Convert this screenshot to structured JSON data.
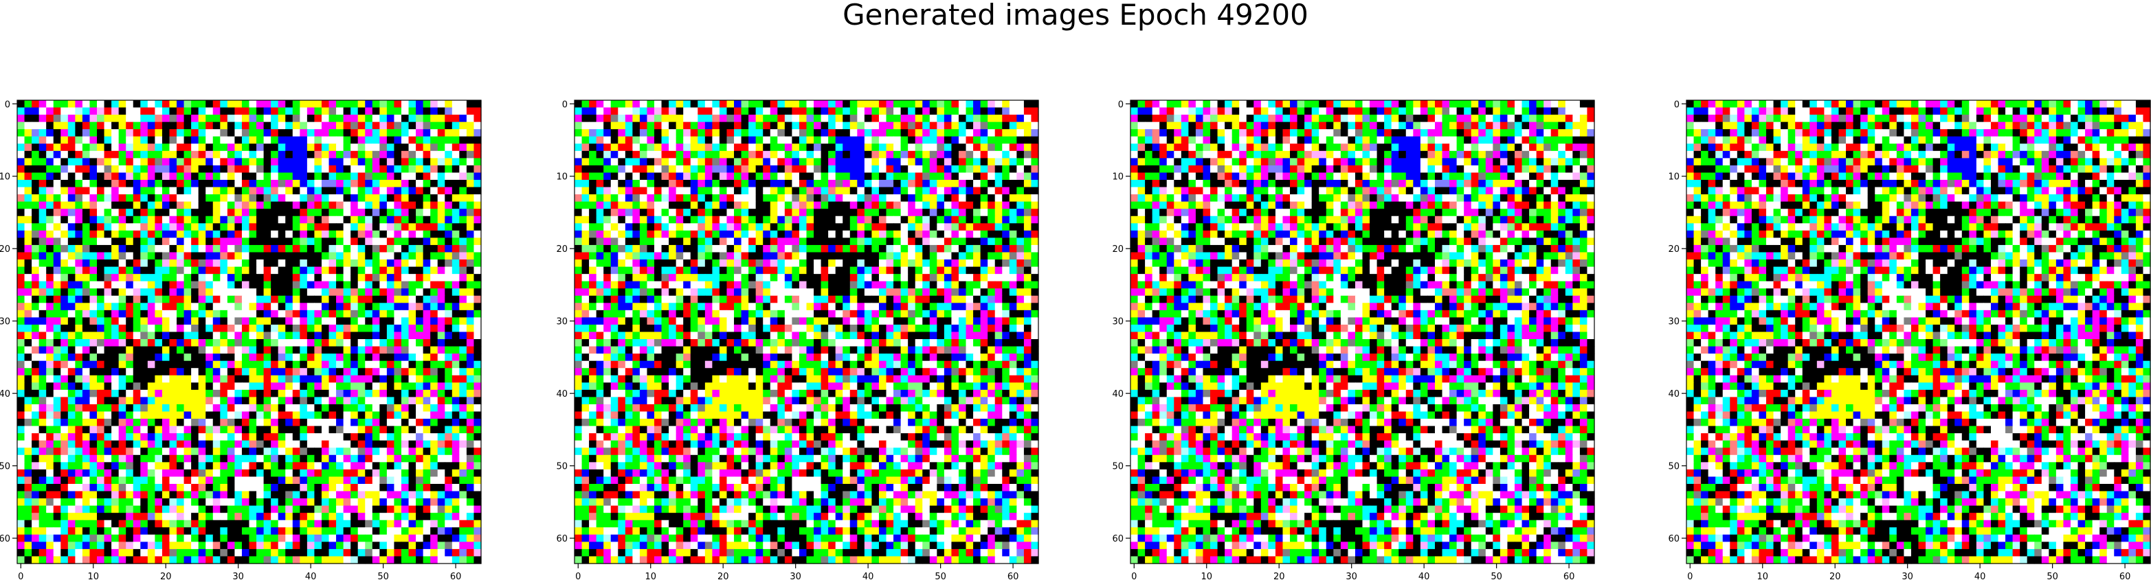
{
  "figure": {
    "title": "Generated images Epoch 49200"
  },
  "chart_data": {
    "type": "heatmap",
    "title": "Generated images Epoch 49200",
    "panel_count": 4,
    "image_resolution": [
      64,
      64
    ],
    "xlim": [
      0,
      63
    ],
    "ylim": [
      63,
      0
    ],
    "x_ticks": [
      0,
      10,
      20,
      30,
      40,
      50,
      60
    ],
    "y_ticks": [
      0,
      10,
      20,
      30,
      40,
      50,
      60
    ],
    "palette": [
      "#000000",
      "#ffffff",
      "#ff0000",
      "#00ff00",
      "#0000ff",
      "#ffff00",
      "#00ffff",
      "#ff00ff",
      "#ff8080",
      "#80ff80",
      "#8080ff",
      "#ffb0ff",
      "#b0ffff",
      "#808080"
    ],
    "dominant_colors": [
      "#000000",
      "#ffffff",
      "#00ff00",
      "#ffff00",
      "#00ffff",
      "#ff00ff",
      "#ff0000",
      "#0000ff"
    ],
    "description_note": "saturated RGB noise, nearly identical across all four panels"
  }
}
